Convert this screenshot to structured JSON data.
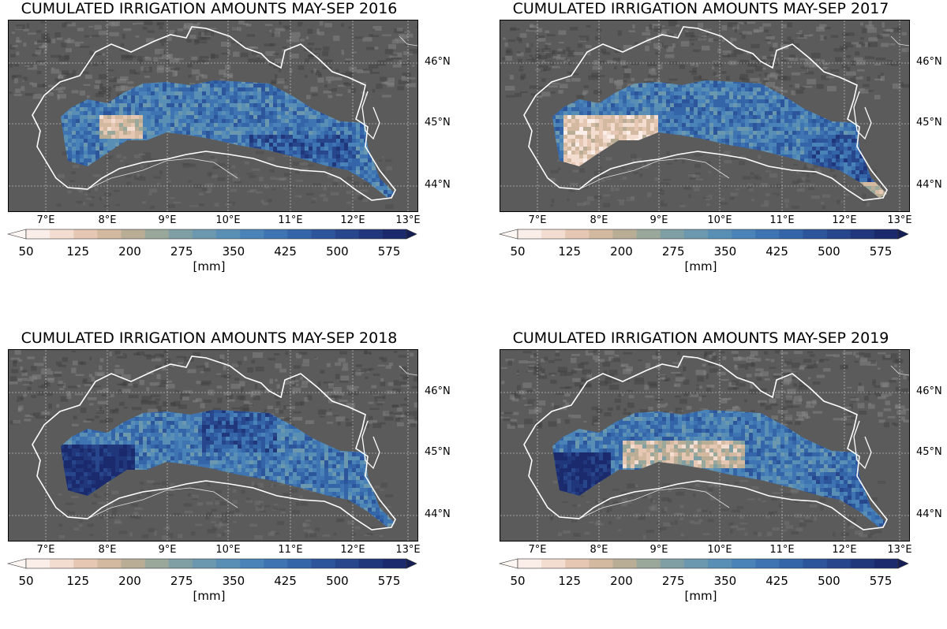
{
  "panels": [
    {
      "title": "CUMULATED IRRIGATION AMOUNTS MAY-SEP 2016",
      "variant": "2016"
    },
    {
      "title": "CUMULATED IRRIGATION AMOUNTS MAY-SEP 2017",
      "variant": "2017"
    },
    {
      "title": "CUMULATED IRRIGATION AMOUNTS MAY-SEP 2018",
      "variant": "2018"
    },
    {
      "title": "CUMULATED IRRIGATION AMOUNTS MAY-SEP 2019",
      "variant": "2019"
    }
  ],
  "lon_labels": [
    "7°E",
    "8°E",
    "9°E",
    "10°E",
    "11°E",
    "12°E",
    "13°E"
  ],
  "lat_labels": [
    "46°N",
    "45°N",
    "44°N"
  ],
  "colorbar": {
    "ticks": [
      "50",
      "125",
      "200",
      "275",
      "350",
      "425",
      "500",
      "575"
    ],
    "label": "[mm]",
    "min": 50,
    "max": 600,
    "colors": [
      "#fbeee8",
      "#f3dcd0",
      "#e6c7b3",
      "#d3b9a0",
      "#b9ad96",
      "#9aa79b",
      "#7f9fa4",
      "#6b98af",
      "#5a8fb5",
      "#4a83b7",
      "#3e74b1",
      "#3465a8",
      "#2d559b",
      "#27468c",
      "#20377b",
      "#1a2a6c"
    ]
  }
}
